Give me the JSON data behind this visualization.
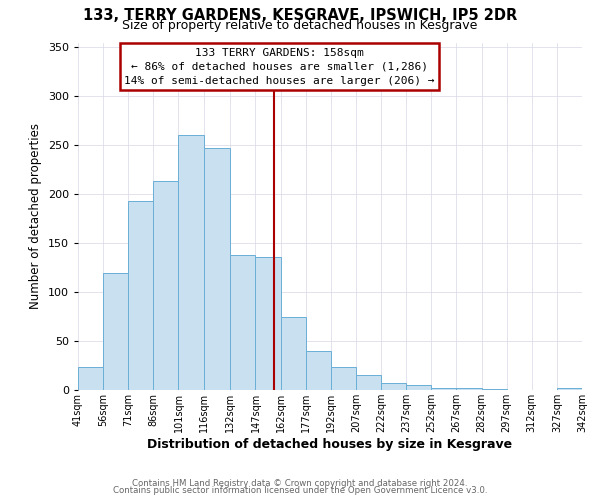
{
  "title": "133, TERRY GARDENS, KESGRAVE, IPSWICH, IP5 2DR",
  "subtitle": "Size of property relative to detached houses in Kesgrave",
  "xlabel": "Distribution of detached houses by size in Kesgrave",
  "ylabel": "Number of detached properties",
  "bar_lefts": [
    41,
    56,
    71,
    86,
    101,
    116,
    132,
    147,
    162,
    177,
    192,
    207,
    222,
    237,
    252,
    267,
    282,
    297,
    312,
    327
  ],
  "bar_rights": [
    56,
    71,
    86,
    101,
    116,
    132,
    147,
    162,
    177,
    192,
    207,
    222,
    237,
    252,
    267,
    282,
    297,
    312,
    327,
    342
  ],
  "bar_heights": [
    24,
    120,
    193,
    214,
    261,
    247,
    138,
    136,
    75,
    40,
    24,
    15,
    7,
    5,
    2,
    2,
    1,
    0,
    0,
    2
  ],
  "bar_color": "#c9e0f0",
  "bar_edgecolor": "#6aaed6",
  "property_line_x": 158,
  "property_line_color": "#aa0000",
  "annotation_title": "133 TERRY GARDENS: 158sqm",
  "annotation_line1": "← 86% of detached houses are smaller (1,286)",
  "annotation_line2": "14% of semi-detached houses are larger (206) →",
  "annotation_box_edgecolor": "#aa0000",
  "annotation_bg": "#ffffff",
  "ylim": [
    0,
    355
  ],
  "xlim": [
    41,
    342
  ],
  "tick_labels": [
    "41sqm",
    "56sqm",
    "71sqm",
    "86sqm",
    "101sqm",
    "116sqm",
    "132sqm",
    "147sqm",
    "162sqm",
    "177sqm",
    "192sqm",
    "207sqm",
    "222sqm",
    "237sqm",
    "252sqm",
    "267sqm",
    "282sqm",
    "297sqm",
    "312sqm",
    "327sqm",
    "342sqm"
  ],
  "tick_positions": [
    41,
    56,
    71,
    86,
    101,
    116,
    132,
    147,
    162,
    177,
    192,
    207,
    222,
    237,
    252,
    267,
    282,
    297,
    312,
    327,
    342
  ],
  "footer1": "Contains HM Land Registry data © Crown copyright and database right 2024.",
  "footer2": "Contains public sector information licensed under the Open Government Licence v3.0.",
  "bg_color": "#ffffff",
  "grid_color": "#d8d8e8"
}
